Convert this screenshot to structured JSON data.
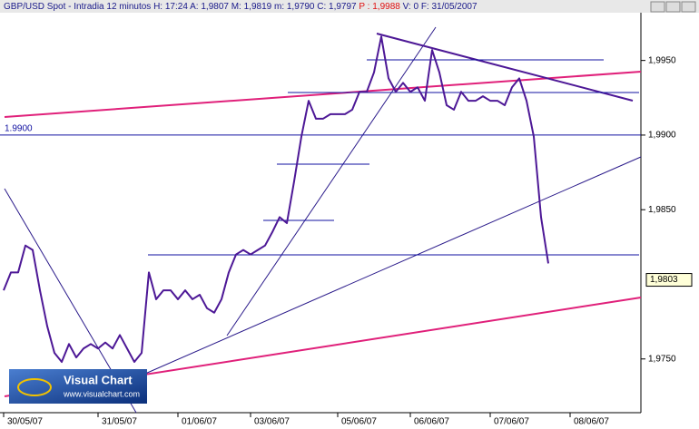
{
  "header": {
    "title": "GBP/USD Spot - Intradia 12 minutos",
    "items": [
      "H: 17:24",
      "A: 1,9807",
      "M: 1,9819",
      "m: 1,9790",
      "C: 1,9797",
      "V: 0",
      "F: 31/05/2007"
    ],
    "highlight": "P : 1,9988"
  },
  "logo": {
    "name": "Visual Chart",
    "url": "www.visualchart.com"
  },
  "chart_data": {
    "type": "line",
    "color": "#4d1896",
    "categories": [
      "30/05/07",
      null,
      null,
      null,
      null,
      null,
      null,
      null,
      null,
      null,
      null,
      null,
      null,
      "31/05/07",
      null,
      null,
      null,
      null,
      null,
      null,
      null,
      null,
      null,
      null,
      "01/06/07",
      null,
      null,
      null,
      null,
      null,
      null,
      null,
      null,
      null,
      "03/06/07",
      null,
      null,
      null,
      null,
      null,
      null,
      null,
      null,
      null,
      null,
      null,
      "05/06/07",
      null,
      null,
      null,
      null,
      null,
      null,
      null,
      null,
      null,
      "06/06/07",
      null,
      null,
      null,
      null,
      null,
      null,
      null,
      null,
      null,
      null,
      "07/06/07",
      null,
      null,
      null,
      null,
      null,
      null,
      null,
      null,
      null,
      null,
      "08/06/07",
      null,
      null,
      null,
      null,
      null,
      null,
      null,
      null,
      null
    ],
    "values": [
      1.9796,
      1.9808,
      1.9808,
      1.9826,
      1.9823,
      1.9796,
      1.9772,
      1.9754,
      1.9748,
      1.976,
      1.9751,
      1.9757,
      1.976,
      1.9757,
      1.9761,
      1.9757,
      1.9766,
      1.9757,
      1.9748,
      1.9754,
      1.9808,
      1.979,
      1.9796,
      1.9796,
      1.979,
      1.9796,
      1.979,
      1.9793,
      1.9784,
      1.9781,
      1.979,
      1.9808,
      1.982,
      1.9823,
      1.982,
      1.9823,
      1.9826,
      1.9835,
      1.9845,
      1.9841,
      1.9869,
      1.9899,
      1.9923,
      1.9911,
      1.9911,
      1.9914,
      1.9914,
      1.9914,
      1.9917,
      1.9929,
      1.9929,
      1.9942,
      1.9966,
      1.9938,
      1.9929,
      1.9935,
      1.9929,
      1.9932,
      1.9923,
      1.9957,
      1.9942,
      1.992,
      1.9917,
      1.9929,
      1.9923,
      1.9923,
      1.9926,
      1.9923,
      1.9923,
      1.992,
      1.9932,
      1.9938,
      1.9923,
      1.9899,
      1.9845,
      1.9814,
      null,
      null,
      null,
      null,
      null,
      null,
      null,
      null,
      null,
      null,
      null,
      null
    ],
    "ylim": [
      1.9714,
      1.9982
    ],
    "yticks": [
      {
        "value": 1.975,
        "label": "1,9750"
      },
      {
        "value": 1.985,
        "label": "1,9850"
      },
      {
        "value": 1.99,
        "label": "1,9900"
      },
      {
        "value": 1.995,
        "label": "1,9950"
      }
    ],
    "reference_line": {
      "value": 1.99,
      "label": "1.9900",
      "color": "#1010a0"
    },
    "last_price": {
      "value": 1.9803,
      "label": "1,9803"
    }
  }
}
